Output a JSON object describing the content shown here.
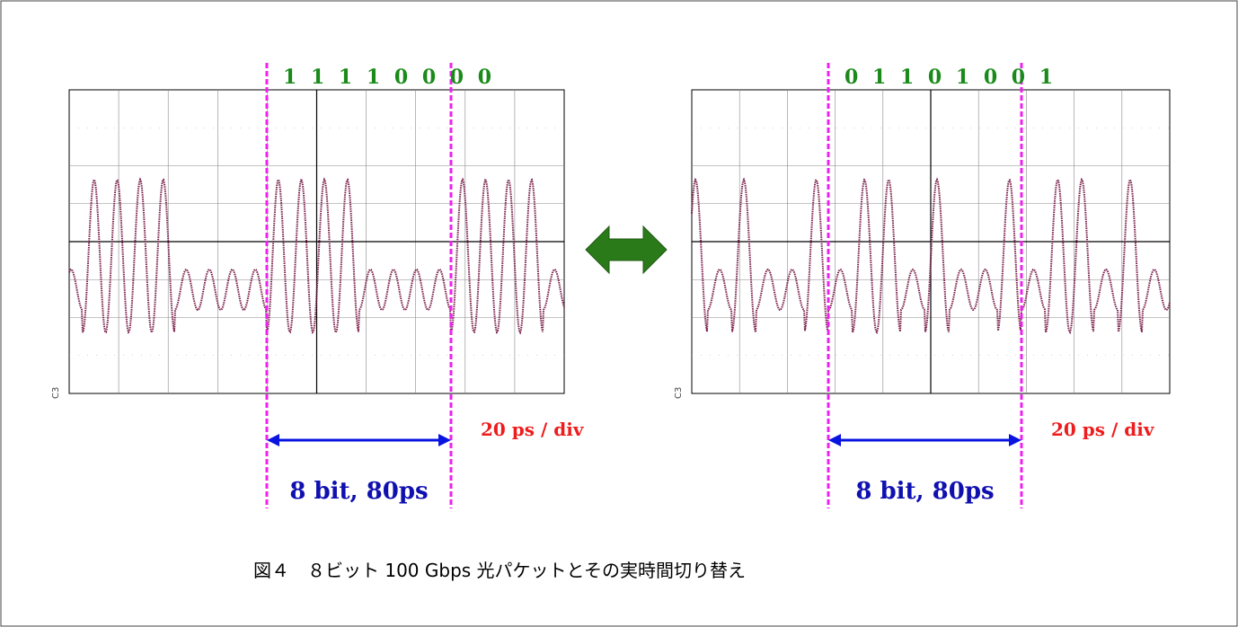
{
  "figure": {
    "panels": [
      {
        "bits": "1 1 1 1 0 0 0 0",
        "scale": "20 ps / div",
        "span": "8 bit, 80ps",
        "channel": "C3"
      },
      {
        "bits": "0 1 1 0 1 0 0 1",
        "scale": "20 ps / div",
        "span": "8 bit, 80ps",
        "channel": "C3"
      }
    ],
    "caption": "図４　８ビット 100 Gbps 光パケットとその実時間切り替え"
  }
}
